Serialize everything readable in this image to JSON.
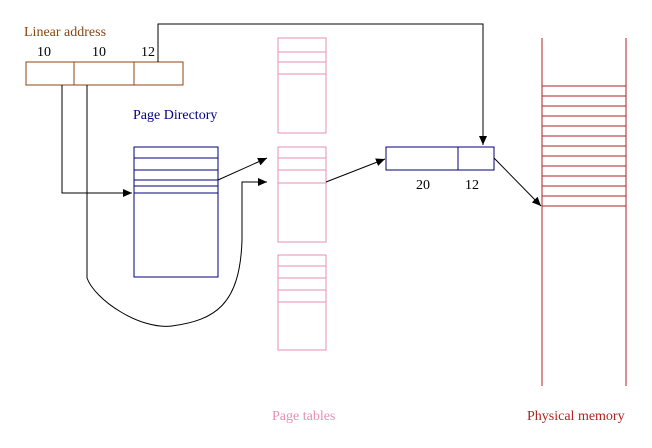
{
  "linear_address": {
    "title": "Linear address",
    "fields": [
      "10",
      "10",
      "12"
    ]
  },
  "page_directory": {
    "title": "Page Directory"
  },
  "page_tables": {
    "title": "Page tables"
  },
  "page_frame": {
    "fields": [
      "20",
      "12"
    ]
  },
  "physical_memory": {
    "title": "Physical memory"
  },
  "colors": {
    "linear_address": "#8b4513",
    "page_directory": "#00007f",
    "page_tables": "#e78fb4",
    "physical_memory": "#b22222",
    "arrows": "#000000"
  }
}
